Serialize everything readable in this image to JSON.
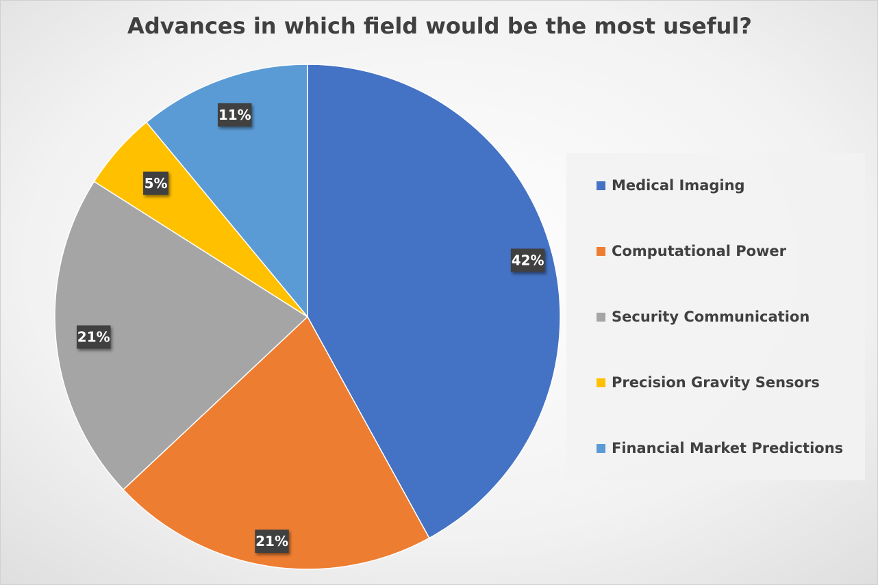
{
  "chart_data": {
    "type": "pie",
    "title": "Advances in which field would be the most useful?",
    "categories": [
      "Medical Imaging",
      "Computational Power",
      "Security Communication",
      "Precision Gravity Sensors",
      "Financial Market Predictions"
    ],
    "values": [
      42,
      21,
      21,
      5,
      11
    ],
    "data_labels": [
      "42%",
      "21%",
      "21%",
      "5%",
      "11%"
    ],
    "colors": [
      "#4472C4",
      "#ED7D31",
      "#A5A5A5",
      "#FFC000",
      "#5B9BD5"
    ],
    "legend_position": "right",
    "start_angle_deg": 0,
    "direction": "clockwise"
  }
}
